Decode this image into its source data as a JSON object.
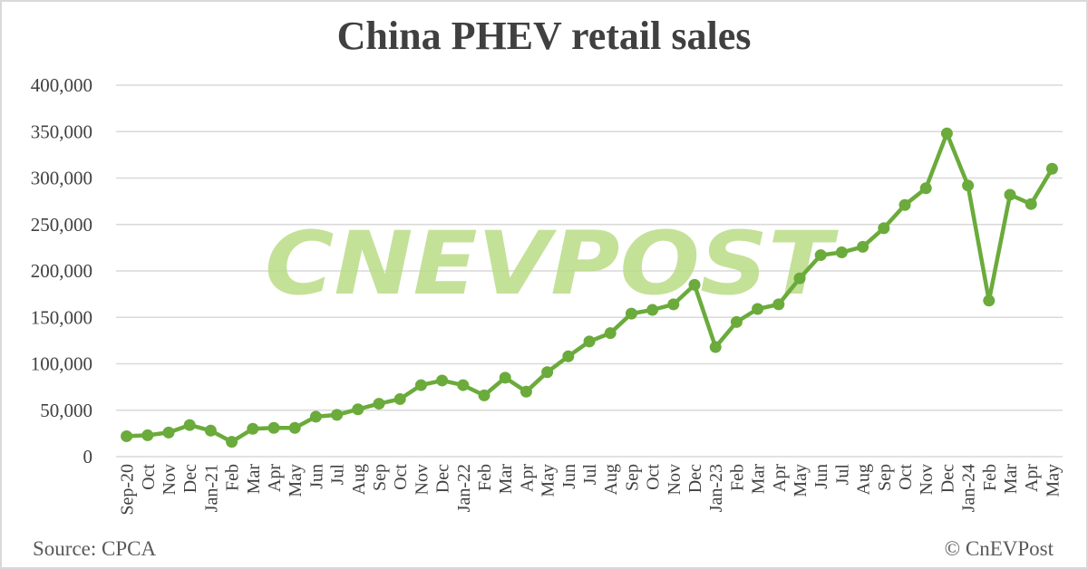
{
  "title": "China PHEV retail sales",
  "footer": {
    "source": "Source: CPCA",
    "copyright": "© CnEVPost"
  },
  "watermark": "CNEVPOST",
  "colors": {
    "line": "#6aab3b",
    "marker": "#6aab3b",
    "gridline": "#d9d9d9",
    "watermark": "#b5d97e",
    "text": "#404040"
  },
  "chart_data": {
    "type": "line",
    "title": "China PHEV retail sales",
    "xlabel": "",
    "ylabel": "",
    "ylim": [
      0,
      400000
    ],
    "yticks": [
      0,
      50000,
      100000,
      150000,
      200000,
      250000,
      300000,
      350000,
      400000
    ],
    "ytick_labels": [
      "0",
      "50,000",
      "100,000",
      "150,000",
      "200,000",
      "250,000",
      "300,000",
      "350,000",
      "400,000"
    ],
    "grid": true,
    "legend": "none",
    "categories": [
      "Sep-20",
      "Oct",
      "Nov",
      "Dec",
      "Jan-21",
      "Feb",
      "Mar",
      "Apr",
      "May",
      "Jun",
      "Jul",
      "Aug",
      "Sep",
      "Oct",
      "Nov",
      "Dec",
      "Jan-22",
      "Feb",
      "Mar",
      "Apr",
      "May",
      "Jun",
      "Jul",
      "Aug",
      "Sep",
      "Oct",
      "Nov",
      "Dec",
      "Jan-23",
      "Feb",
      "Mar",
      "Apr",
      "May",
      "Jun",
      "Jul",
      "Aug",
      "Sep",
      "Oct",
      "Nov",
      "Dec",
      "Jan-24",
      "Feb",
      "Mar",
      "Apr",
      "May"
    ],
    "series": [
      {
        "name": "PHEV retail sales",
        "values": [
          22000,
          23000,
          26000,
          34000,
          28000,
          16000,
          30000,
          31000,
          31000,
          43000,
          45000,
          51000,
          57000,
          62000,
          77000,
          82000,
          77000,
          66000,
          85000,
          70000,
          91000,
          108000,
          124000,
          133000,
          154000,
          158000,
          164000,
          185000,
          118000,
          145000,
          159000,
          164000,
          192000,
          217000,
          220000,
          226000,
          246000,
          271000,
          289000,
          348000,
          292000,
          168000,
          282000,
          272000,
          310000
        ]
      }
    ]
  }
}
